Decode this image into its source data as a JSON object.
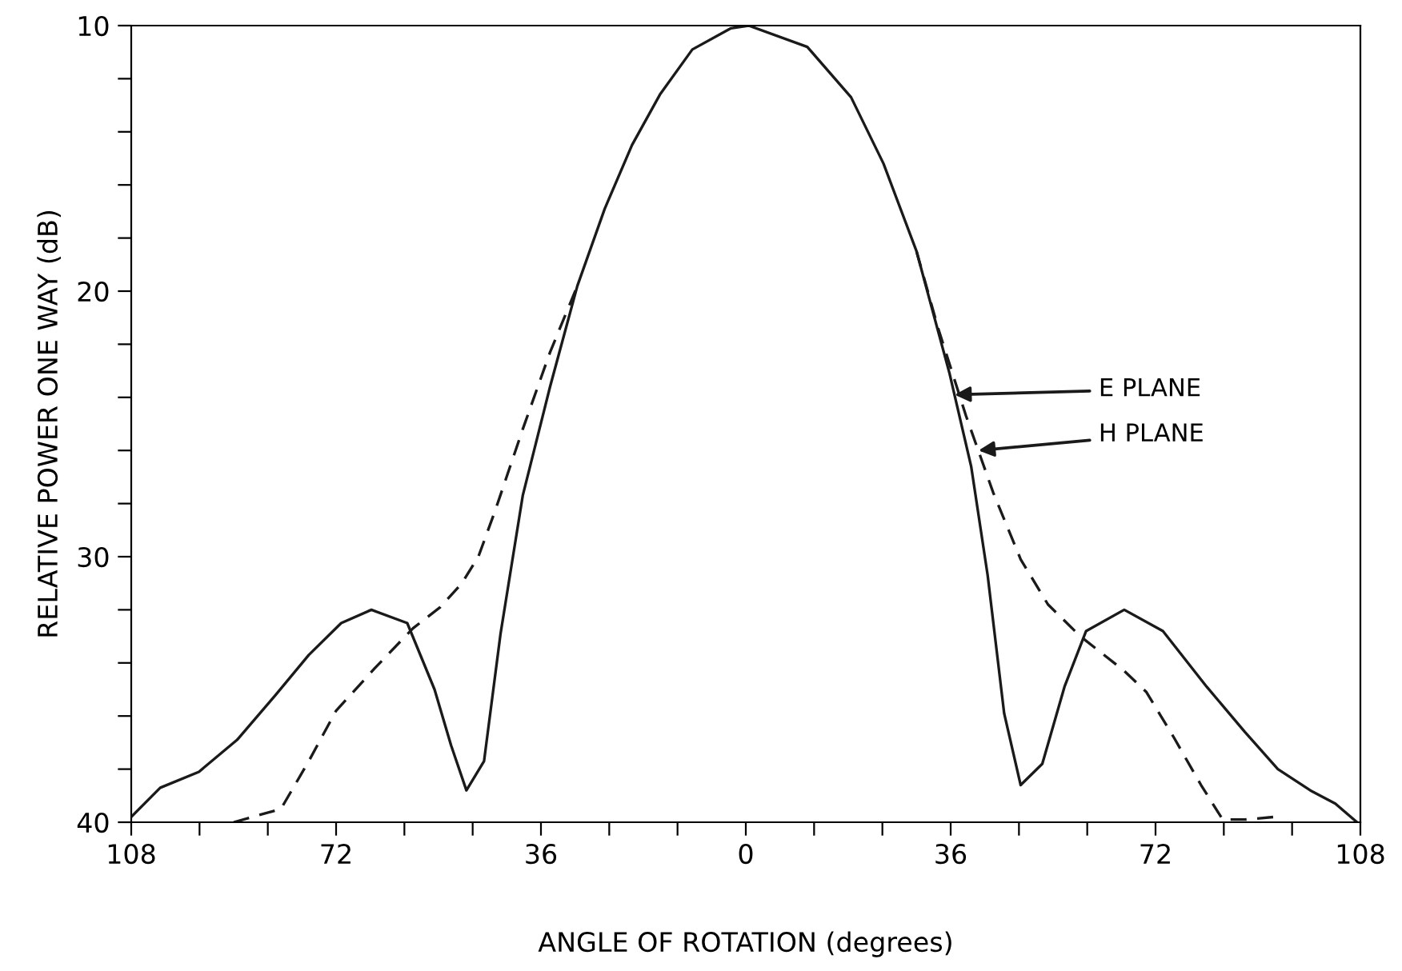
{
  "chart_data": {
    "type": "line",
    "xlabel": "ANGLE OF ROTATION (degrees)",
    "ylabel": "RELATIVE POWER ONE WAY (dB)",
    "xlim": [
      -108,
      108
    ],
    "ylim": [
      40,
      10
    ],
    "xticks": [
      {
        "value": -108,
        "label": "108"
      },
      {
        "value": -96,
        "label": null
      },
      {
        "value": -84,
        "label": null
      },
      {
        "value": -72,
        "label": "72"
      },
      {
        "value": -60,
        "label": null
      },
      {
        "value": -48,
        "label": null
      },
      {
        "value": -36,
        "label": "36"
      },
      {
        "value": -24,
        "label": null
      },
      {
        "value": -12,
        "label": null
      },
      0,
      {
        "value": 12,
        "label": null
      },
      {
        "value": 24,
        "label": null
      },
      36,
      {
        "value": 48,
        "label": null
      },
      {
        "value": 60,
        "label": null
      },
      72,
      {
        "value": 84,
        "label": null
      },
      {
        "value": 96,
        "label": null
      },
      108
    ],
    "yticks": [
      10,
      {
        "value": 12,
        "label": null
      },
      {
        "value": 14,
        "label": null
      },
      {
        "value": 16,
        "label": null
      },
      {
        "value": 18,
        "label": null
      },
      20,
      {
        "value": 22,
        "label": null
      },
      {
        "value": 24,
        "label": null
      },
      {
        "value": 26,
        "label": null
      },
      {
        "value": 28,
        "label": null
      },
      30,
      {
        "value": 32,
        "label": null
      },
      {
        "value": 34,
        "label": null
      },
      {
        "value": 36,
        "label": null
      },
      {
        "value": 38,
        "label": null
      },
      40
    ],
    "grid": false,
    "legend": false,
    "marker": "none",
    "series": [
      {
        "color": "#1a1a1a",
        "line_style": "solid",
        "x": [
          -108,
          -102.9,
          -96.1,
          -89.4,
          -82.6,
          -76.8,
          -71.1,
          -65.8,
          -59.5,
          -54.7,
          -51.8,
          -49.1,
          -46.0,
          -43.1,
          -39.2,
          -34.4,
          -29.6,
          -24.8,
          -20.0,
          -15.1,
          -9.4,
          -2.6,
          0.5,
          10.8,
          18.5,
          24.2,
          30.0,
          35.8,
          39.6,
          42.5,
          45.4,
          48.3,
          52.1,
          56.0,
          59.8,
          66.5,
          73.3,
          81,
          87.7,
          93.5,
          99.2,
          103.6,
          107.4
        ],
        "values": [
          39.8,
          38.7,
          38.1,
          36.9,
          35.2,
          33.7,
          32.5,
          32.0,
          32.5,
          35.0,
          37.1,
          38.8,
          37.7,
          32.9,
          27.7,
          23.6,
          19.8,
          16.9,
          14.5,
          12.6,
          10.9,
          10.1,
          10.0,
          10.8,
          12.7,
          15.2,
          18.5,
          23.1,
          26.6,
          30.7,
          35.9,
          38.6,
          37.8,
          34.9,
          32.8,
          32.0,
          32.8,
          34.9,
          36.6,
          38.0,
          38.8,
          39.3,
          40
        ]
      },
      {
        "color": "#1a1a1a",
        "line_style": "dashed",
        "x": [
          -90,
          -81.7,
          -76.8,
          -72,
          -65.2,
          -58.5,
          -53.7,
          -49.9,
          -47.0,
          -44.1,
          -39.2,
          -34.4,
          -29.6
        ],
        "values": [
          40,
          39.5,
          37.7,
          35.8,
          34.2,
          32.7,
          31.9,
          31.0,
          30.0,
          28.3,
          25.2,
          22.3,
          19.8
        ]
      },
      {
        "color": "#1a1a1a",
        "line_style": "dashed",
        "x": [
          30.0,
          33.8,
          38.7,
          43.5,
          48.3,
          53.1,
          58.8,
          66.5,
          70.4,
          75.2,
          80,
          83.8,
          87.7,
          92.9
        ],
        "values": [
          18.5,
          21.4,
          24.7,
          27.6,
          30.1,
          31.8,
          33.0,
          34.3,
          35.1,
          36.8,
          38.6,
          39.9,
          39.9,
          39.8
        ]
      }
    ],
    "annotations": [
      {
        "text": "E PLANE",
        "x": 36.7,
        "y": 23.9
      },
      {
        "text": "H PLANE",
        "x": 40.9,
        "y": 26
      }
    ]
  }
}
